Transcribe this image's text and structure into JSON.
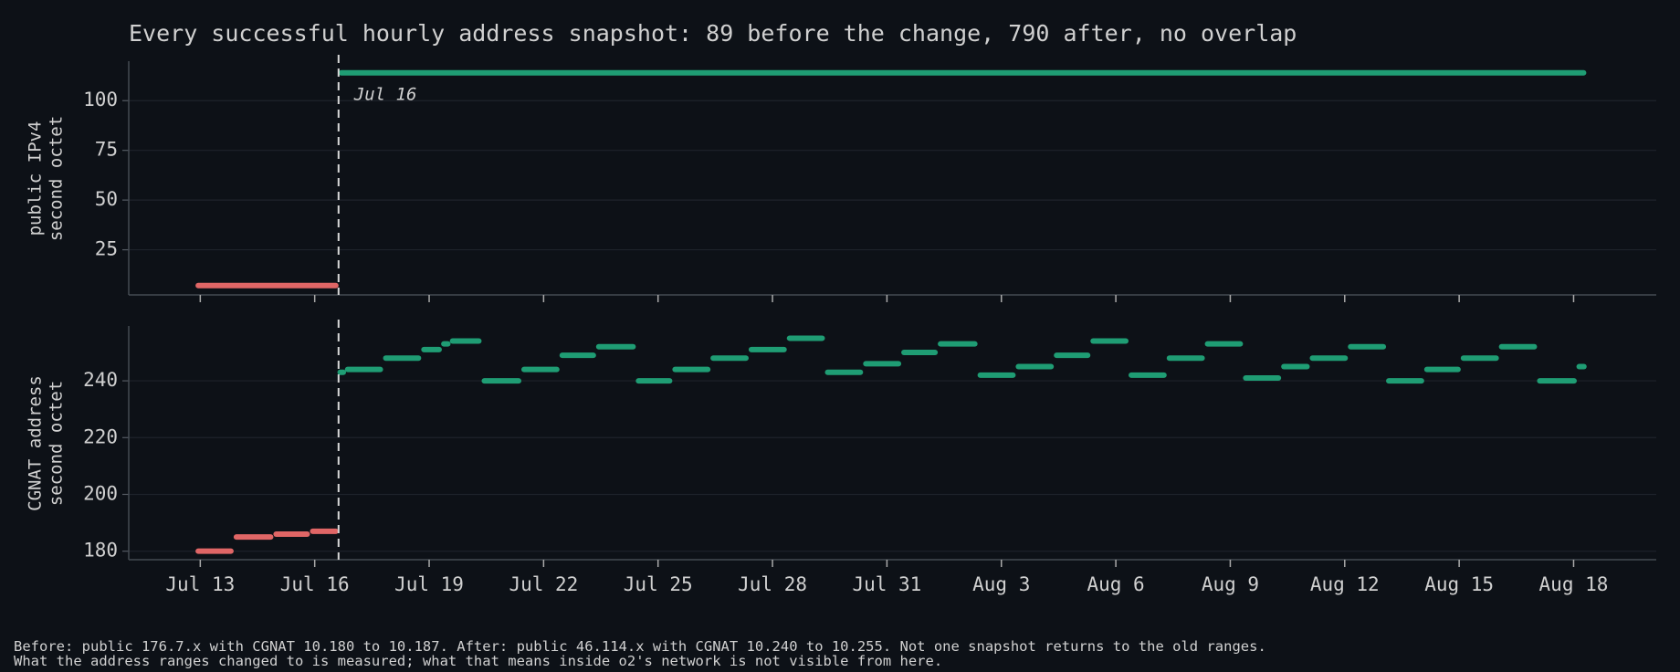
{
  "chart_data": [
    {
      "type": "step",
      "title": "Every successful hourly address snapshot: 89 before the change, 790 after, no overlap",
      "ylabel": [
        "public IPv4",
        "second octet"
      ],
      "annotation": "Jul 16",
      "vline": "Jul 16 15:00",
      "xlim": [
        "Jul 11 03:00",
        "Aug 20 04:00"
      ],
      "xticks": [
        "Jul 13",
        "Jul 16",
        "Jul 19",
        "Jul 22",
        "Jul 25",
        "Jul 28",
        "Jul 31",
        "Aug 3",
        "Aug 6",
        "Aug 9",
        "Aug 12",
        "Aug 15",
        "Aug 18"
      ],
      "xtick_labels": false,
      "ylim": [
        2.3,
        119.4
      ],
      "yticks": [
        25,
        50,
        75,
        100
      ],
      "grid": true,
      "series": [
        {
          "color": "#e06666",
          "x": [
            "Jul 12 21:00",
            "Jul 16 15:00"
          ],
          "values": [
            7,
            null
          ]
        },
        {
          "color": "#1f9d74",
          "x": [
            "Jul 16 15:00",
            "Aug 18 08:00"
          ],
          "values": [
            114,
            null
          ]
        }
      ]
    },
    {
      "type": "step",
      "ylabel": [
        "CGNAT address",
        "second octet"
      ],
      "vline": "Jul 16 15:00",
      "xlim": [
        "Jul 11 03:00",
        "Aug 20 04:00"
      ],
      "xticks": [
        "Jul 13",
        "Jul 16",
        "Jul 19",
        "Jul 22",
        "Jul 25",
        "Jul 28",
        "Jul 31",
        "Aug 3",
        "Aug 6",
        "Aug 9",
        "Aug 12",
        "Aug 15",
        "Aug 18"
      ],
      "xtick_labels": true,
      "ylim": [
        177,
        259
      ],
      "yticks": [
        180,
        200,
        220,
        240
      ],
      "grid": true,
      "series": [
        {
          "color": "#e06666",
          "x": [
            "Jul 12 21:00",
            "Jul 13 21:00",
            "Jul 14 22:00",
            "Jul 15 21:00",
            "Jul 16 15:00"
          ],
          "values": [
            180,
            185,
            186,
            187,
            null
          ]
        },
        {
          "color": "#1f9d74",
          "x": [
            "Jul 16 15:00",
            "Jul 16 19:00",
            "Jul 17 19:00",
            "Jul 18 19:00",
            "Jul 19 08:00",
            "Jul 19 13:00",
            "Jul 20 09:00",
            "Jul 21 10:00",
            "Jul 22 10:00",
            "Jul 23 09:00",
            "Jul 24 10:00",
            "Jul 25 09:00",
            "Jul 26 09:00",
            "Jul 27 09:00",
            "Jul 28 09:00",
            "Jul 29 09:00",
            "Jul 30 09:00",
            "Jul 31 09:00",
            "Aug 1 08:00",
            "Aug 2 09:00",
            "Aug 3 09:00",
            "Aug 4 09:00",
            "Aug 5 08:00",
            "Aug 6 08:00",
            "Aug 7 08:00",
            "Aug 8 08:00",
            "Aug 9 08:00",
            "Aug 10 08:00",
            "Aug 11 02:00",
            "Aug 12 02:00",
            "Aug 13 02:00",
            "Aug 14 02:00",
            "Aug 15 01:00",
            "Aug 16 01:00",
            "Aug 17 01:00",
            "Aug 18 02:00",
            "Aug 18 08:00"
          ],
          "values": [
            243,
            244,
            248,
            251,
            253,
            254,
            240,
            244,
            249,
            252,
            240,
            244,
            248,
            251,
            255,
            243,
            246,
            250,
            253,
            242,
            245,
            249,
            254,
            242,
            248,
            253,
            241,
            245,
            248,
            252,
            240,
            244,
            248,
            252,
            240,
            245,
            null
          ]
        }
      ]
    }
  ],
  "footnote": [
    "Before: public 176.7.x with CGNAT 10.180 to 10.187. After: public 46.114.x with CGNAT 10.240 to 10.255. Not one snapshot returns to the old ranges.",
    "What the address ranges changed to is measured; what that means inside o2's network is not visible from here."
  ]
}
